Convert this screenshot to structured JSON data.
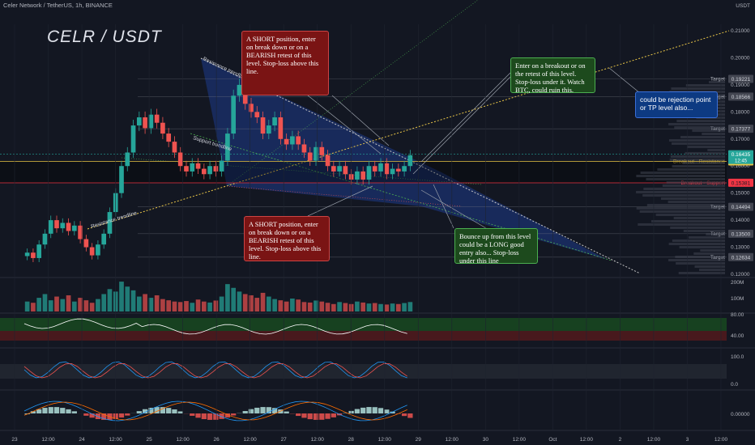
{
  "header": {
    "symbol_line": "Celer Network / TetherUS, 1h, BINANCE",
    "currency": "USDT"
  },
  "title": "CELR  / USDT",
  "chart_data": {
    "type": "candlestick",
    "symbol": "CELR / USDT",
    "timeframe": "1h",
    "exchange": "BINANCE",
    "price_axis_ticks": [
      "0.21000",
      "0.20000",
      "0.19000",
      "0.18000",
      "0.17000",
      "0.16000",
      "0.15000",
      "0.14000",
      "0.13000",
      "0.12000"
    ],
    "price_axis_values": [
      0.21,
      0.2,
      0.19,
      0.18,
      0.17,
      0.16,
      0.15,
      0.14,
      0.13,
      0.12
    ],
    "time_axis_ticks": [
      "23",
      "12:00",
      "24",
      "12:00",
      "25",
      "12:00",
      "26",
      "12:00",
      "27",
      "12:00",
      "28",
      "12:00",
      "29",
      "12:00",
      "30",
      "12:00",
      "Oct",
      "12:00",
      "2",
      "12:00",
      "3",
      "12:00"
    ],
    "current_price": "0.16435",
    "countdown": "12:45",
    "levels": [
      {
        "label": "Target",
        "price": "0.19221",
        "value": 0.19221,
        "color": "#787b86"
      },
      {
        "label": "Target",
        "price": "0.18566",
        "value": 0.18566,
        "color": "#787b86"
      },
      {
        "label": "Target",
        "price": "0.17377",
        "value": 0.17377,
        "color": "#787b86"
      },
      {
        "label": "Breakout - Resistance",
        "price": "0.16170",
        "value": 0.1617,
        "color": "#e8c547"
      },
      {
        "label": "Breakout - Support",
        "price": "0.15381",
        "value": 0.15381,
        "color": "#f23645"
      },
      {
        "label": "Target",
        "price": "0.14494",
        "value": 0.14494,
        "color": "#787b86"
      },
      {
        "label": "Target",
        "price": "0.13500",
        "value": 0.135,
        "color": "#787b86"
      },
      {
        "label": "Target",
        "price": "0.12634",
        "value": 0.12634,
        "color": "#787b86"
      }
    ],
    "trendline_labels": [
      "Resistance trendline",
      "Support trendline",
      "Resistance trendline"
    ],
    "candles_close": [
      0.128,
      0.126,
      0.131,
      0.135,
      0.14,
      0.137,
      0.139,
      0.136,
      0.138,
      0.133,
      0.13,
      0.127,
      0.131,
      0.135,
      0.143,
      0.15,
      0.16,
      0.165,
      0.175,
      0.178,
      0.174,
      0.179,
      0.176,
      0.172,
      0.169,
      0.165,
      0.16,
      0.158,
      0.161,
      0.159,
      0.157,
      0.16,
      0.158,
      0.162,
      0.172,
      0.186,
      0.19,
      0.183,
      0.18,
      0.178,
      0.172,
      0.175,
      0.178,
      0.17,
      0.168,
      0.171,
      0.168,
      0.165,
      0.162,
      0.167,
      0.164,
      0.16,
      0.158,
      0.16,
      0.157,
      0.155,
      0.158,
      0.155,
      0.16,
      0.158,
      0.161,
      0.157,
      0.159,
      0.158,
      0.16,
      0.164
    ],
    "volume_axis_ticks": [
      "200M",
      "100M"
    ],
    "volume_values": [
      40,
      35,
      55,
      70,
      45,
      60,
      50,
      65,
      40,
      55,
      45,
      35,
      50,
      70,
      90,
      80,
      120,
      100,
      85,
      60,
      70,
      55,
      65,
      50,
      45,
      40,
      38,
      42,
      35,
      48,
      40,
      36,
      44,
      60,
      110,
      95,
      80,
      70,
      65,
      55,
      75,
      60,
      50,
      45,
      40,
      52,
      48,
      38,
      36,
      44,
      40,
      35,
      30,
      38,
      34,
      30,
      40,
      36,
      32,
      34,
      30,
      28,
      32,
      30,
      34,
      38
    ],
    "rsi_axis_ticks": [
      "80.00",
      "40.00"
    ],
    "stoch_axis_ticks": [
      "100.0",
      "0.0"
    ],
    "macd_axis_ticks": [
      "0.00000"
    ]
  },
  "annotations": {
    "short_top": "A SHORT position, enter on break down or on a BEARISH retest of this level. Stop-loss above this line.",
    "short_bottom": "A SHORT position, enter on break down or on a BEARISH retest of this level. Stop-loss above this line.",
    "long_breakout": "Enter on a breakout or on the retest of this level. Stop-loss under it. Watch BTC, could ruin this.",
    "long_bounce": "Bounce up from this level could be a LONG good entry also... Stop-loss under this line",
    "rejection": "could be rejection point or TP level also..."
  },
  "colors": {
    "bg": "#131722",
    "up": "#26a69a",
    "down": "#ef5350",
    "channel": "#1e3a8a"
  }
}
